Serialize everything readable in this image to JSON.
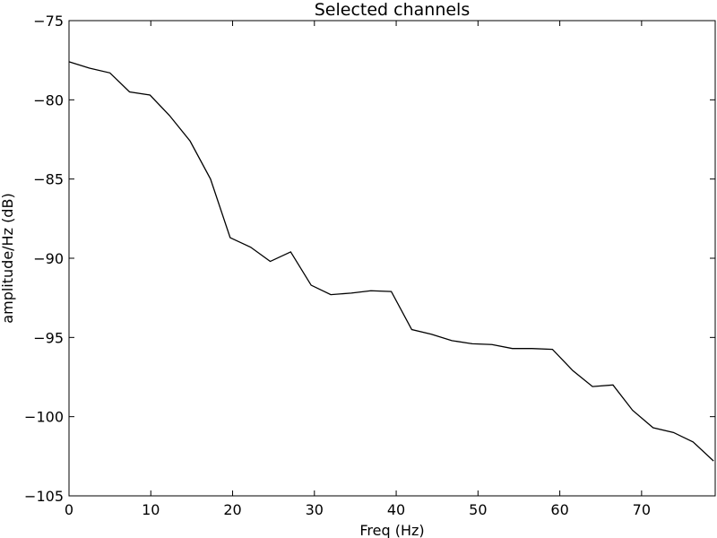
{
  "chart_data": {
    "type": "line",
    "title": "Selected channels",
    "xlabel": "Freq (Hz)",
    "ylabel": "amplitude/Hz (dB)",
    "xlim": [
      0,
      79
    ],
    "ylim": [
      -105,
      -75
    ],
    "xticks": [
      0,
      10,
      20,
      30,
      40,
      50,
      60,
      70
    ],
    "yticks": [
      -75,
      -80,
      -85,
      -90,
      -95,
      -100,
      -105
    ],
    "xtick_labels": [
      "0",
      "10",
      "20",
      "30",
      "40",
      "50",
      "60",
      "70"
    ],
    "ytick_labels": [
      "−75",
      "−80",
      "−85",
      "−90",
      "−95",
      "−100",
      "−105"
    ],
    "grid": false,
    "legend": false,
    "series": [
      {
        "color": "#000000",
        "x": [
          0,
          2.5,
          5,
          7.4,
          9.9,
          12.3,
          14.8,
          17.3,
          19.7,
          22.2,
          24.6,
          27.1,
          29.6,
          32.0,
          34.5,
          36.9,
          39.4,
          41.9,
          44.3,
          46.8,
          49.3,
          51.7,
          54.2,
          56.6,
          59.1,
          61.6,
          64.0,
          66.5,
          68.9,
          71.4,
          73.9,
          76.3,
          78.8
        ],
        "y": [
          -77.6,
          -78.0,
          -78.3,
          -79.5,
          -79.7,
          -81.0,
          -82.6,
          -85.0,
          -88.7,
          -89.3,
          -90.2,
          -89.6,
          -91.7,
          -92.3,
          -92.2,
          -92.05,
          -92.1,
          -94.5,
          -94.8,
          -95.2,
          -95.4,
          -95.45,
          -95.7,
          -95.7,
          -95.75,
          -97.1,
          -98.1,
          -98.0,
          -99.6,
          -100.7,
          -101.0,
          -101.6,
          -102.8
        ]
      }
    ]
  }
}
